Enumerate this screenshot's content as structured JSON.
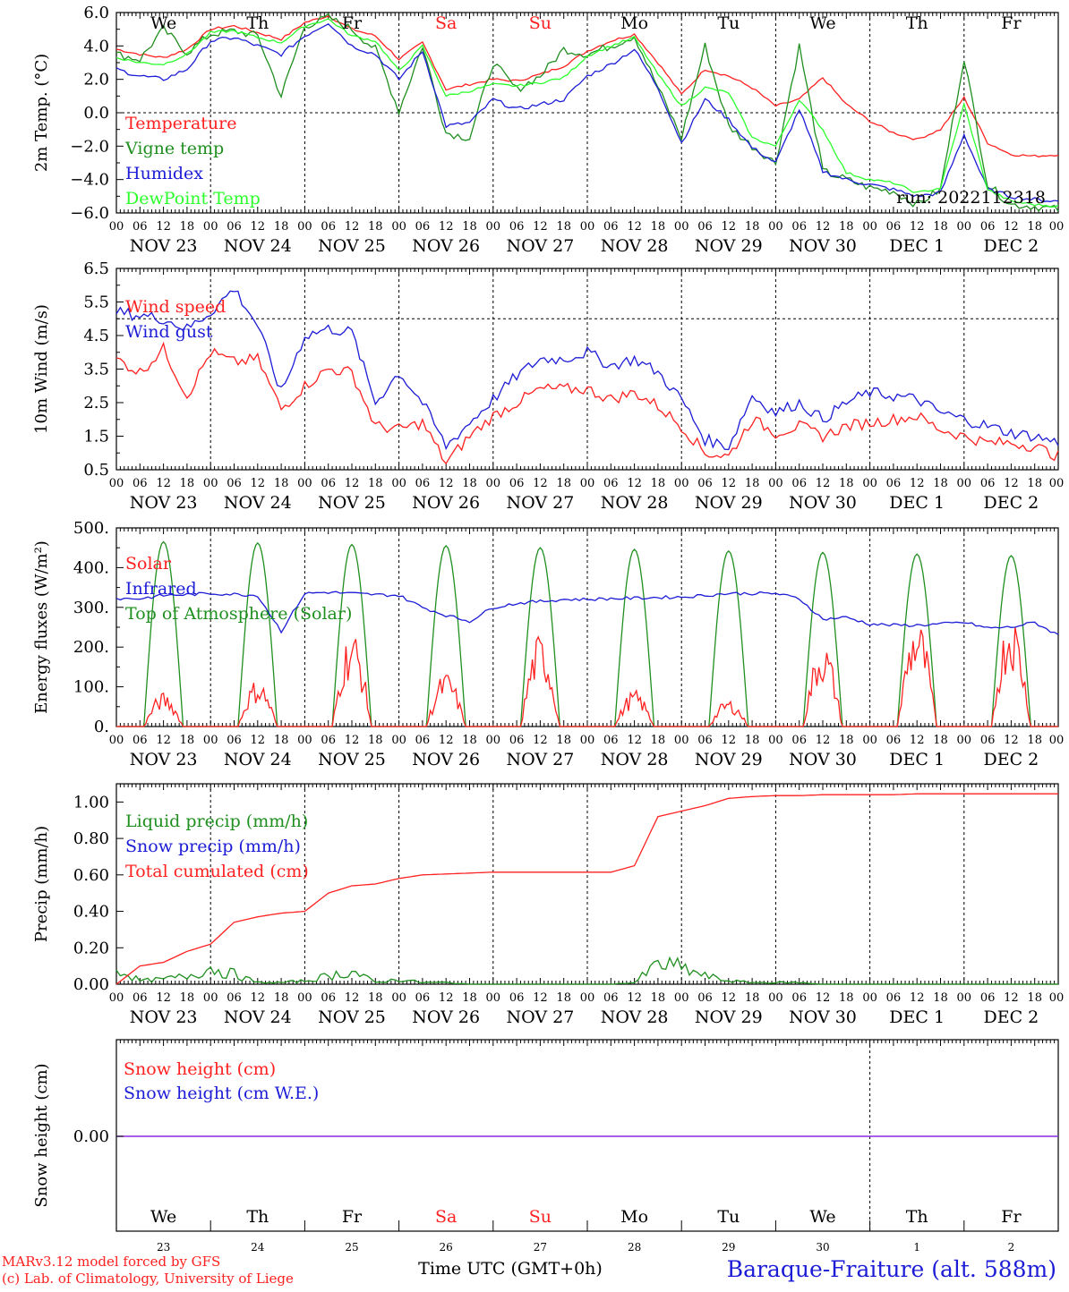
{
  "colors": {
    "red": "#ff2020",
    "green": "#1f8f1f",
    "blue": "#1c1cd6",
    "lightgreen": "#2bff2b",
    "purple": "#8a2be2"
  },
  "time_axis": {
    "hour_ticks": [
      "00",
      "06",
      "12",
      "18"
    ],
    "last_tick": "00",
    "day_labels": [
      "NOV 23",
      "NOV 24",
      "NOV 25",
      "NOV 26",
      "NOV 27",
      "NOV 28",
      "NOV 29",
      "NOV 30",
      "DEC  1",
      "DEC  2"
    ]
  },
  "weekdays": [
    {
      "label": "We",
      "weekend": false
    },
    {
      "label": "Th",
      "weekend": false
    },
    {
      "label": "Fr",
      "weekend": false
    },
    {
      "label": "Sa",
      "weekend": true
    },
    {
      "label": "Su",
      "weekend": true
    },
    {
      "label": "Mo",
      "weekend": false
    },
    {
      "label": "Tu",
      "weekend": false
    },
    {
      "label": "We",
      "weekend": false
    },
    {
      "label": "Th",
      "weekend": false
    },
    {
      "label": "Fr",
      "weekend": false
    }
  ],
  "day_numbers": [
    "23",
    "24",
    "25",
    "26",
    "27",
    "28",
    "29",
    "30",
    "1",
    "2"
  ],
  "footer": {
    "credit1": "MARv3.12 model forced by GFS",
    "credit2": "(c) Lab. of Climatology, University of Liege",
    "time_label": "Time UTC (GMT+0h)",
    "station": "Baraque-Fraiture (alt. 588m)"
  },
  "chart_data": [
    {
      "type": "line",
      "ylabel": "2m Temp. (°C)",
      "ylim": [
        -6,
        6
      ],
      "y_ticks": [
        "6.0",
        "4.0",
        "2.0",
        "0.0",
        "−2.0",
        "−4.0",
        "−6.0"
      ],
      "dashed_ref": 0,
      "annotation": "run: 2022112318",
      "x_hours": [
        0,
        6,
        12,
        18,
        24,
        30,
        36,
        42,
        48,
        54,
        60,
        66,
        72,
        78,
        84,
        90,
        96,
        102,
        108,
        114,
        120,
        126,
        132,
        138,
        144,
        150,
        156,
        162,
        168,
        174,
        180,
        186,
        192,
        198,
        204,
        210,
        216,
        222,
        228,
        234,
        240
      ],
      "series": [
        {
          "name": "Temperature",
          "color": "red",
          "values": [
            3.8,
            3.5,
            3.3,
            3.8,
            5.0,
            5.2,
            4.8,
            4.4,
            5.4,
            5.8,
            5.0,
            4.6,
            3.2,
            4.2,
            1.4,
            1.7,
            2.0,
            1.9,
            2.3,
            2.8,
            3.7,
            4.3,
            4.7,
            3.0,
            1.1,
            2.6,
            2.2,
            1.5,
            0.4,
            0.8,
            2.1,
            0.5,
            -0.5,
            -1.2,
            -1.6,
            -1.0,
            0.9,
            -1.8,
            -2.5,
            -2.6,
            -2.5
          ]
        },
        {
          "name": "Vigne temp",
          "color": "green",
          "values": [
            3.5,
            3.2,
            5.0,
            3.6,
            4.7,
            4.9,
            4.6,
            1.0,
            5.2,
            5.7,
            5.0,
            3.8,
            0.1,
            4.0,
            -1.2,
            -1.5,
            3.0,
            1.4,
            2.2,
            3.8,
            3.5,
            4.0,
            4.6,
            1.5,
            -1.5,
            4.0,
            -0.8,
            -2.0,
            -3.0,
            4.0,
            -3.5,
            -4.0,
            -4.5,
            -4.7,
            -5.5,
            -4.6,
            3.3,
            -4.3,
            -5.5,
            -5.6,
            -5.8
          ]
        },
        {
          "name": "Humidex",
          "color": "blue",
          "values": [
            2.6,
            2.2,
            2.0,
            2.6,
            4.3,
            4.5,
            4.0,
            3.5,
            4.6,
            5.4,
            4.0,
            3.5,
            2.0,
            3.7,
            -0.8,
            -0.6,
            0.8,
            0.2,
            0.5,
            0.8,
            2.2,
            2.9,
            3.8,
            1.5,
            -1.8,
            0.8,
            -0.4,
            -2.1,
            -3.0,
            0.2,
            -3.5,
            -4.0,
            -4.3,
            -4.6,
            -5.0,
            -4.8,
            -1.3,
            -4.6,
            -5.0,
            -5.2,
            -5.3
          ]
        },
        {
          "name": "DewPoint Temp",
          "color": "lightgreen",
          "values": [
            3.3,
            3.0,
            2.9,
            3.5,
            4.8,
            4.9,
            4.5,
            4.2,
            5.2,
            5.6,
            4.6,
            4.3,
            2.5,
            4.0,
            1.0,
            1.3,
            1.7,
            1.6,
            1.8,
            2.1,
            3.4,
            4.0,
            4.5,
            2.3,
            0.4,
            1.5,
            1.2,
            -1.5,
            -2.0,
            0.8,
            -1.0,
            -3.6,
            -4.0,
            -4.2,
            -4.8,
            -4.5,
            0.5,
            -4.6,
            -5.3,
            -5.5,
            -5.6
          ]
        }
      ]
    },
    {
      "type": "line",
      "ylabel": "10m Wind (m/s)",
      "ylim": [
        0.5,
        6.5
      ],
      "y_ticks": [
        "6.5",
        "5.5",
        "4.5",
        "3.5",
        "2.5",
        "1.5",
        "0.5"
      ],
      "dashed_ref": 5,
      "x_hours": [
        0,
        6,
        12,
        18,
        24,
        30,
        36,
        42,
        48,
        54,
        60,
        66,
        72,
        78,
        84,
        90,
        96,
        102,
        108,
        114,
        120,
        126,
        132,
        138,
        144,
        150,
        156,
        162,
        168,
        174,
        180,
        186,
        192,
        198,
        204,
        210,
        216,
        222,
        228,
        234,
        240
      ],
      "series": [
        {
          "name": "Wind speed",
          "color": "red",
          "values": [
            3.8,
            3.4,
            4.1,
            2.7,
            4.0,
            3.7,
            3.8,
            2.3,
            3.0,
            3.5,
            3.4,
            1.8,
            1.7,
            1.9,
            0.7,
            1.5,
            2.1,
            2.5,
            2.9,
            2.9,
            2.9,
            2.6,
            2.8,
            2.4,
            1.8,
            1.0,
            0.9,
            2.0,
            1.6,
            1.8,
            1.5,
            1.8,
            1.9,
            2.0,
            2.1,
            1.7,
            1.5,
            1.3,
            1.3,
            1.2,
            0.9
          ]
        },
        {
          "name": "Wind gust",
          "color": "blue",
          "values": [
            5.2,
            5.1,
            5.0,
            4.7,
            5.2,
            5.9,
            4.8,
            2.8,
            4.5,
            4.7,
            4.6,
            2.5,
            3.4,
            2.5,
            1.2,
            1.9,
            2.6,
            3.3,
            3.8,
            3.8,
            4.0,
            3.6,
            3.8,
            3.4,
            2.6,
            1.4,
            1.2,
            2.7,
            2.2,
            2.5,
            2.0,
            2.5,
            2.8,
            2.7,
            2.6,
            2.2,
            2.0,
            1.8,
            1.6,
            1.5,
            1.3
          ]
        }
      ]
    },
    {
      "type": "line",
      "ylabel": "Energy fluxes (W/m²)",
      "ylim": [
        0,
        500
      ],
      "y_ticks": [
        "500.",
        "400.",
        "300.",
        "200.",
        "100.",
        "0."
      ],
      "x_hours": [
        0,
        6,
        12,
        18,
        24,
        30,
        36,
        42,
        48,
        54,
        60,
        66,
        72,
        78,
        84,
        90,
        96,
        102,
        108,
        114,
        120,
        126,
        132,
        138,
        144,
        150,
        156,
        162,
        168,
        174,
        180,
        186,
        192,
        198,
        204,
        210,
        216,
        222,
        228,
        234,
        240
      ],
      "series": [
        {
          "name": "Solar",
          "color": "red",
          "solar_peaks": [
            75,
            105,
            215,
            120,
            205,
            80,
            60,
            190,
            240,
            255
          ]
        },
        {
          "name": "Infrared",
          "color": "blue",
          "values": [
            322,
            322,
            330,
            332,
            335,
            333,
            330,
            240,
            335,
            338,
            335,
            332,
            330,
            300,
            280,
            265,
            300,
            310,
            315,
            320,
            320,
            322,
            323,
            325,
            326,
            330,
            335,
            335,
            335,
            322,
            270,
            275,
            258,
            255,
            255,
            258,
            262,
            248,
            250,
            262,
            230
          ]
        },
        {
          "name": "Top of Atmosphere (Solar)",
          "color": "green",
          "solar_peaks": [
            465,
            462,
            458,
            455,
            450,
            446,
            442,
            438,
            434,
            430
          ]
        }
      ]
    },
    {
      "type": "line",
      "ylabel": "Precip (mm/h)",
      "ylim": [
        0,
        1.1
      ],
      "y_ticks": [
        "1.00",
        "0.80",
        "0.60",
        "0.40",
        "0.20",
        "0.00"
      ],
      "x_hours": [
        0,
        6,
        12,
        18,
        24,
        30,
        36,
        42,
        48,
        54,
        60,
        66,
        72,
        78,
        84,
        90,
        96,
        102,
        108,
        114,
        120,
        126,
        132,
        138,
        144,
        150,
        156,
        162,
        168,
        174,
        180,
        186,
        192,
        198,
        204,
        210,
        216,
        222,
        228,
        234,
        240
      ],
      "series": [
        {
          "name": "Liquid precip (mm/h)",
          "color": "green",
          "values": [
            0.1,
            0.02,
            0.03,
            0.05,
            0.1,
            0.06,
            0.01,
            0.01,
            0.02,
            0.05,
            0.08,
            0.01,
            0.03,
            0.01,
            0.01,
            0,
            0,
            0,
            0,
            0,
            0,
            0,
            0.01,
            0.12,
            0.1,
            0.05,
            0.02,
            0.01,
            0.01,
            0.01,
            0,
            0,
            0,
            0,
            0,
            0,
            0,
            0,
            0,
            0,
            0
          ]
        },
        {
          "name": "Snow precip (mm/h)",
          "color": "blue",
          "values": [
            0,
            0,
            0,
            0,
            0,
            0,
            0,
            0,
            0,
            0,
            0,
            0,
            0,
            0,
            0,
            0,
            0,
            0,
            0,
            0,
            0,
            0,
            0,
            0,
            0,
            0,
            0,
            0,
            0,
            0,
            0,
            0,
            0,
            0,
            0,
            0,
            0,
            0,
            0,
            0,
            0
          ]
        },
        {
          "name": "Total cumulated (cm)",
          "color": "red",
          "values": [
            0,
            0.1,
            0.12,
            0.18,
            0.22,
            0.34,
            0.37,
            0.39,
            0.4,
            0.5,
            0.54,
            0.55,
            0.58,
            0.6,
            0.605,
            0.61,
            0.615,
            0.615,
            0.615,
            0.615,
            0.615,
            0.615,
            0.65,
            0.92,
            0.95,
            0.98,
            1.02,
            1.03,
            1.035,
            1.035,
            1.04,
            1.04,
            1.04,
            1.04,
            1.045,
            1.045,
            1.045,
            1.045,
            1.045,
            1.045,
            1.045
          ]
        }
      ]
    },
    {
      "type": "line",
      "ylabel": "Snow height (cm)",
      "y_ticks": [
        "0.00"
      ],
      "series": [
        {
          "name": "Snow height (cm)",
          "color": "red",
          "values": [
            0,
            0
          ]
        },
        {
          "name": "Snow height (cm W.E.)",
          "color": "blue",
          "values": [
            0,
            0
          ]
        }
      ]
    }
  ]
}
